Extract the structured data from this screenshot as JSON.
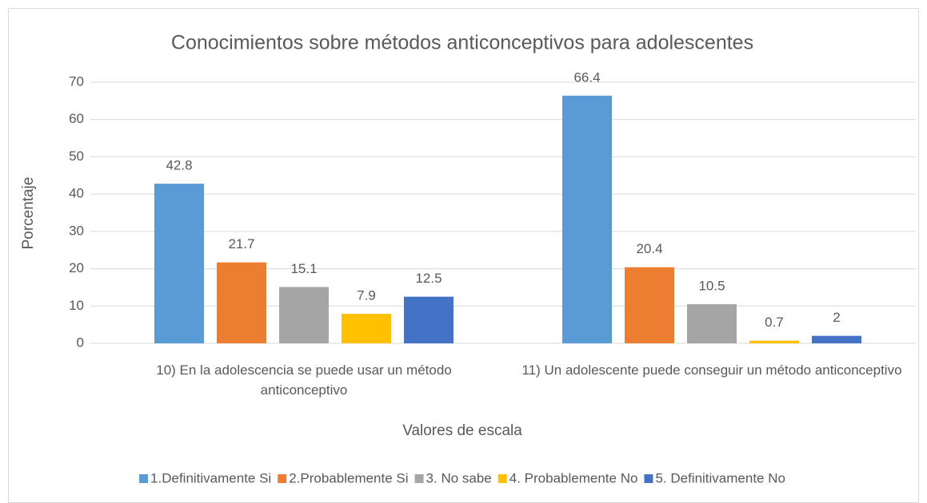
{
  "chart_data": {
    "type": "bar",
    "title": "Conocimientos sobre métodos anticonceptivos para adolescentes",
    "xlabel": "Valores de escala",
    "ylabel": "Porcentaje",
    "categories": [
      "10) En la adolescencia se puede usar un método anticonceptivo",
      "11) Un adolescente puede conseguir un método anticonceptivo"
    ],
    "series": [
      {
        "name": "1.Definitivamente Si",
        "color": "#5b9bd5",
        "values": [
          42.8,
          66.4
        ]
      },
      {
        "name": "2.Probablemente Si",
        "color": "#ed7d31",
        "values": [
          21.7,
          20.4
        ]
      },
      {
        "name": "3. No sabe",
        "color": "#a5a5a5",
        "values": [
          15.1,
          10.5
        ]
      },
      {
        "name": "4. Probablemente No",
        "color": "#ffc000",
        "values": [
          7.9,
          0.7
        ]
      },
      {
        "name": "5. Definitivamente No",
        "color": "#4472c4",
        "values": [
          12.5,
          2
        ]
      }
    ],
    "ylim": [
      0,
      70
    ],
    "yticks": [
      0,
      10,
      20,
      30,
      40,
      50,
      60,
      70
    ],
    "grid": true,
    "legend": "bottom"
  }
}
